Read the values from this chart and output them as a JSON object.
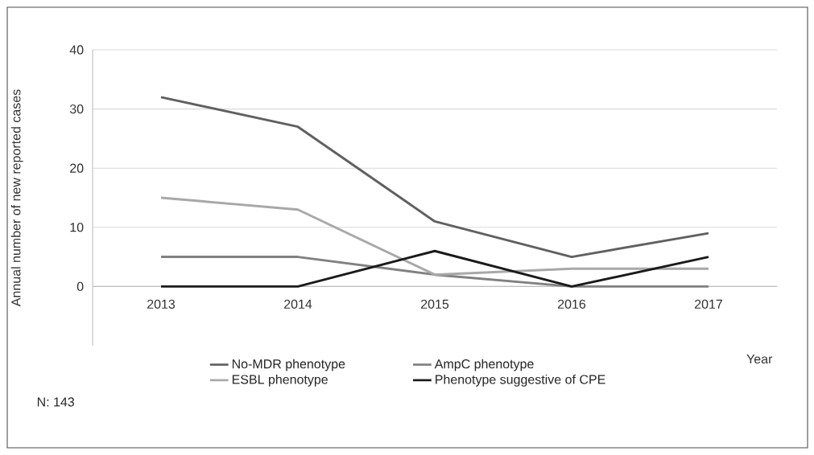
{
  "chart_data": {
    "type": "line",
    "xlabel": "Year",
    "ylabel": "Annual number of new reported cases",
    "categories": [
      "2013",
      "2014",
      "2015",
      "2016",
      "2017"
    ],
    "series": [
      {
        "name": "No-MDR phenotype",
        "color": "#606060",
        "values": [
          32,
          27,
          11,
          5,
          9
        ]
      },
      {
        "name": "AmpC phenotype",
        "color": "#808080",
        "values": [
          5,
          5,
          2,
          0,
          0
        ]
      },
      {
        "name": "ESBL phenotype",
        "color": "#a8a8a8",
        "values": [
          15,
          13,
          2,
          3,
          3
        ]
      },
      {
        "name": "Phenotype suggestive of CPE",
        "color": "#1a1a1a",
        "values": [
          0,
          0,
          6,
          0,
          5
        ]
      }
    ],
    "ylim": [
      -10,
      40
    ],
    "yticks": [
      0,
      10,
      20,
      30,
      40
    ],
    "grid": "y",
    "legend": "bottom",
    "line_style": "solid",
    "annotations": [
      "N: 143"
    ]
  }
}
